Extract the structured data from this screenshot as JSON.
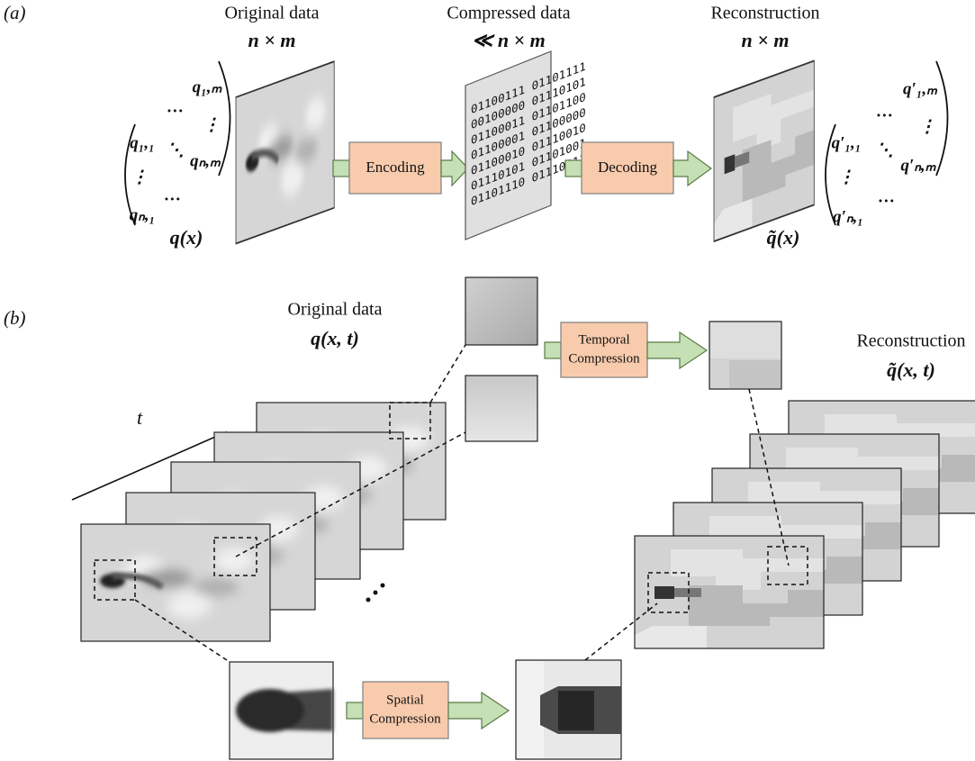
{
  "panel_a": {
    "label": "(a)",
    "original": {
      "title": "Original data",
      "size": "n × m",
      "symbol": "q(x)",
      "matrix": [
        "q₁,₁",
        "…",
        "q₁,ₘ",
        "⋮",
        "⋱",
        "⋮",
        "qₙ,₁",
        "…",
        "qₙ,ₘ"
      ]
    },
    "encoding": "Encoding",
    "compressed": {
      "title": "Compressed data",
      "size": "≪ n × m",
      "bits": [
        "01100111 01101111",
        "00100000 01110101",
        "01100011 01101100",
        "01100001 01100000",
        "01100010 01110010",
        "01110101 01101001",
        "01101110 01110011"
      ]
    },
    "decoding": "Decoding",
    "reconstruction": {
      "title": "Reconstruction",
      "size": "n × m",
      "symbol": "q̃(x)",
      "matrix": [
        "q′₁,₁",
        "…",
        "q′₁,ₘ",
        "⋮",
        "⋱",
        "⋮",
        "q′ₙ,₁",
        "…",
        "q′ₙ,ₘ"
      ]
    }
  },
  "panel_b": {
    "label": "(b)",
    "original": {
      "title": "Original data",
      "symbol": "q(x, t)"
    },
    "time_axis": "t",
    "temporal": [
      "Temporal",
      "Compression"
    ],
    "reconstruction": {
      "title": "Reconstruction",
      "symbol": "q̃(x, t)"
    },
    "spatial": [
      "Spatial",
      "Compression"
    ]
  }
}
